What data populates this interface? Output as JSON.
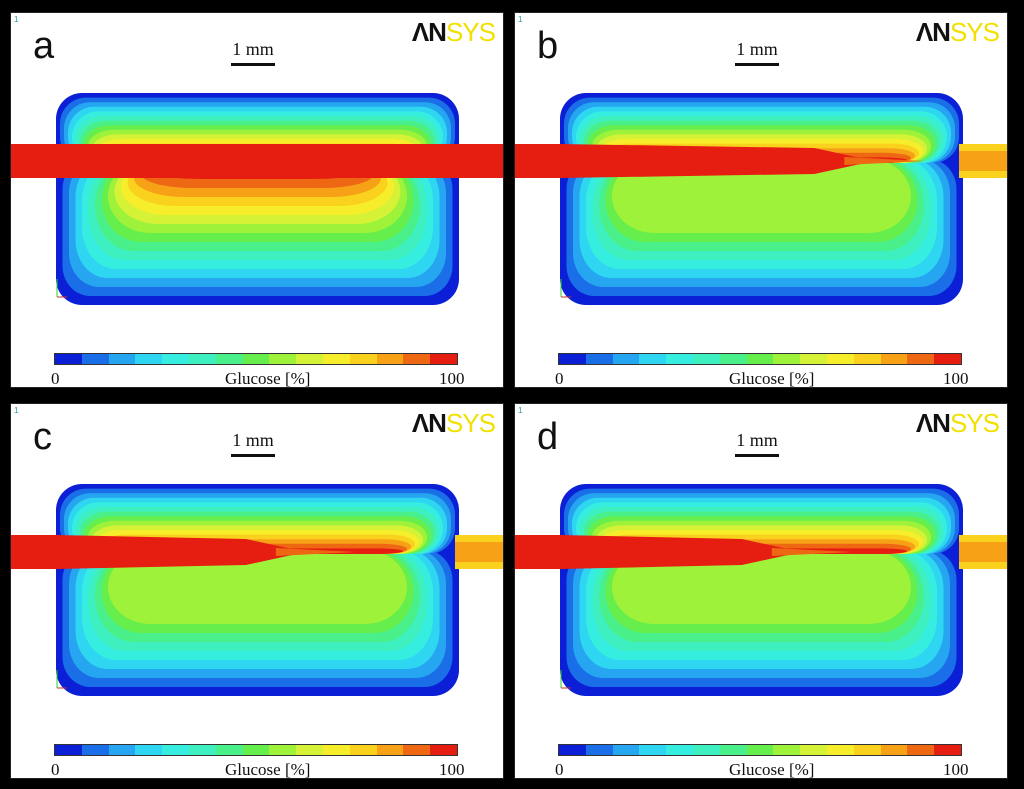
{
  "panels": [
    {
      "letter": "a",
      "logo_an": "ΛN",
      "logo_sys": "SYS",
      "scale": "1 mm",
      "cb_min": "0",
      "cb_label": "Glucose [%]",
      "cb_max": "100",
      "jet_end": 1.0
    },
    {
      "letter": "b",
      "logo_an": "ΛN",
      "logo_sys": "SYS",
      "scale": "1 mm",
      "cb_min": "0",
      "cb_label": "Glucose [%]",
      "cb_max": "100",
      "jet_end": 0.78
    },
    {
      "letter": "c",
      "logo_an": "ΛN",
      "logo_sys": "SYS",
      "scale": "1 mm",
      "cb_min": "0",
      "cb_label": "Glucose [%]",
      "cb_max": "100",
      "jet_end": 0.62
    },
    {
      "letter": "d",
      "logo_an": "ΛN",
      "logo_sys": "SYS",
      "scale": "1 mm",
      "cb_min": "0",
      "cb_label": "Glucose [%]",
      "cb_max": "100",
      "jet_end": 0.6
    }
  ],
  "colorbar": [
    "#0a1fd6",
    "#1a6ee8",
    "#26a6f0",
    "#2fd6f2",
    "#36eee0",
    "#3ef0c0",
    "#49f08a",
    "#66ee4c",
    "#9ef23a",
    "#d6f236",
    "#f6ee2a",
    "#fad21e",
    "#f7a216",
    "#ee6814",
    "#e61e12"
  ]
}
